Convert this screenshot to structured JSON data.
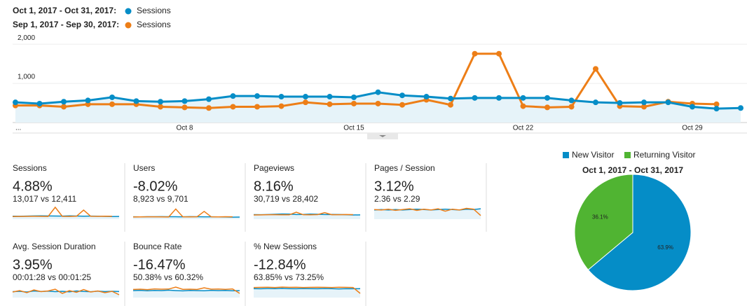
{
  "chart_data": [
    {
      "type": "line",
      "categories": [
        "...",
        null,
        null,
        null,
        null,
        null,
        null,
        "Oct 8",
        null,
        null,
        null,
        null,
        null,
        null,
        "Oct 15",
        null,
        null,
        null,
        null,
        null,
        null,
        "Oct 22",
        null,
        null,
        null,
        null,
        null,
        null,
        "Oct 29",
        null,
        null
      ],
      "ylim": [
        0,
        2200
      ],
      "yticks": [
        {
          "value": 1000,
          "label": "1,000"
        },
        {
          "value": 2000,
          "label": "2,000"
        }
      ],
      "grid": true,
      "series": [
        {
          "range": "Oct 1, 2017 - Oct 31, 2017:",
          "name": "Sessions",
          "color": "#058dc7",
          "values": [
            516,
            484,
            532,
            565,
            645,
            548,
            532,
            548,
            597,
            677,
            677,
            661,
            661,
            661,
            645,
            774,
            694,
            661,
            613,
            629,
            629,
            629,
            629,
            565,
            516,
            500,
            516,
            516,
            403,
            355,
            371
          ]
        },
        {
          "range": "Sep 1, 2017 - Sep 30, 2017:",
          "name": "Sessions",
          "color": "#ed7e17",
          "values": [
            435,
            435,
            403,
            468,
            468,
            468,
            403,
            387,
            371,
            403,
            403,
            419,
            516,
            468,
            484,
            484,
            452,
            581,
            452,
            1758,
            1758,
            419,
            387,
            403,
            1371,
            419,
            403,
            532,
            484,
            468,
            null
          ]
        }
      ]
    },
    {
      "type": "pie",
      "title": "Oct 1, 2017 - Oct 31, 2017",
      "categories": [
        "New Visitor",
        "Returning Visitor"
      ],
      "values": [
        63.9,
        36.1
      ],
      "value_labels": [
        "63.9%",
        "36.1%"
      ],
      "colors": [
        "#058dc7",
        "#50b432"
      ]
    }
  ],
  "metrics": [
    {
      "name": "Sessions",
      "change": "4.88%",
      "comparison": "13,017 vs 12,411",
      "color": "#2e9e44",
      "ylim": [
        0,
        2000
      ],
      "series": [
        [
          420,
          410,
          440,
          460,
          470,
          460,
          450,
          440,
          470,
          450,
          430,
          440,
          420,
          400,
          380,
          390
        ],
        [
          380,
          390,
          400,
          410,
          400,
          390,
          1700,
          400,
          390,
          420,
          1300,
          410,
          400,
          420,
          410,
          null
        ]
      ]
    },
    {
      "name": "Users",
      "change": "-8.02%",
      "comparison": "8,923 vs 9,701",
      "color": "#dd4b39",
      "ylim": [
        0,
        1800
      ],
      "series": [
        [
          300,
          290,
          310,
          320,
          330,
          320,
          310,
          300,
          330,
          310,
          300,
          300,
          290,
          280,
          260,
          270
        ],
        [
          280,
          290,
          300,
          300,
          290,
          280,
          1300,
          300,
          290,
          310,
          1000,
          300,
          290,
          310,
          300,
          null
        ]
      ]
    },
    {
      "name": "Pageviews",
      "change": "8.16%",
      "comparison": "30,719 vs 28,402",
      "color": "#2e9e44",
      "ylim": [
        0,
        3000
      ],
      "series": [
        [
          980,
          960,
          1000,
          1050,
          1100,
          1080,
          1000,
          1010,
          1090,
          1050,
          1000,
          1020,
          990,
          950,
          900,
          920
        ],
        [
          900,
          920,
          950,
          960,
          940,
          930,
          1500,
          950,
          930,
          980,
          1400,
          960,
          950,
          1000,
          970,
          null
        ]
      ]
    },
    {
      "name": "Pages / Session",
      "change": "3.12%",
      "comparison": "2.36 vs 2.29",
      "color": "#2e9e44",
      "ylim": [
        0,
        3.5
      ],
      "series": [
        [
          2.3,
          2.4,
          2.3,
          2.4,
          2.3,
          2.4,
          2.5,
          2.4,
          2.3,
          2.4,
          2.5,
          2.4,
          2.3,
          2.5,
          2.4,
          2.6
        ],
        [
          2.4,
          2.3,
          2.5,
          2.2,
          2.4,
          2.6,
          2.2,
          2.5,
          2.3,
          2.6,
          2.0,
          2.5,
          2.3,
          2.7,
          2.5,
          0.9
        ]
      ]
    },
    {
      "name": "Avg. Session Duration",
      "change": "3.95%",
      "comparison": "00:01:28 vs 00:01:25",
      "color": "#2e9e44",
      "ylim": [
        0,
        200
      ],
      "series": [
        [
          85,
          90,
          80,
          95,
          88,
          92,
          85,
          90,
          82,
          95,
          88,
          84,
          92,
          86,
          90,
          88
        ],
        [
          80,
          100,
          70,
          110,
          85,
          95,
          120,
          60,
          100,
          75,
          115,
          80,
          95,
          70,
          90,
          40
        ]
      ]
    },
    {
      "name": "Bounce Rate",
      "change": "-16.47%",
      "comparison": "50.38% vs 60.32%",
      "color": "#2e9e44",
      "ylim": [
        0,
        100
      ],
      "series": [
        [
          50,
          52,
          49,
          51,
          50,
          53,
          50,
          48,
          51,
          50,
          49,
          52,
          50,
          51,
          49,
          50
        ],
        [
          58,
          60,
          57,
          62,
          60,
          61,
          75,
          59,
          60,
          58,
          70,
          60,
          61,
          59,
          62,
          30
        ]
      ]
    },
    {
      "name": "% New Sessions",
      "change": "-12.84%",
      "comparison": "63.85% vs 73.25%",
      "color": "#dd4b39",
      "ylim": [
        0,
        100
      ],
      "series": [
        [
          64,
          63,
          65,
          64,
          66,
          64,
          63,
          65,
          64,
          63,
          65,
          64,
          62,
          64,
          63,
          64
        ],
        [
          72,
          73,
          74,
          72,
          75,
          73,
          74,
          72,
          73,
          74,
          73,
          72,
          74,
          73,
          72,
          30
        ]
      ]
    }
  ]
}
